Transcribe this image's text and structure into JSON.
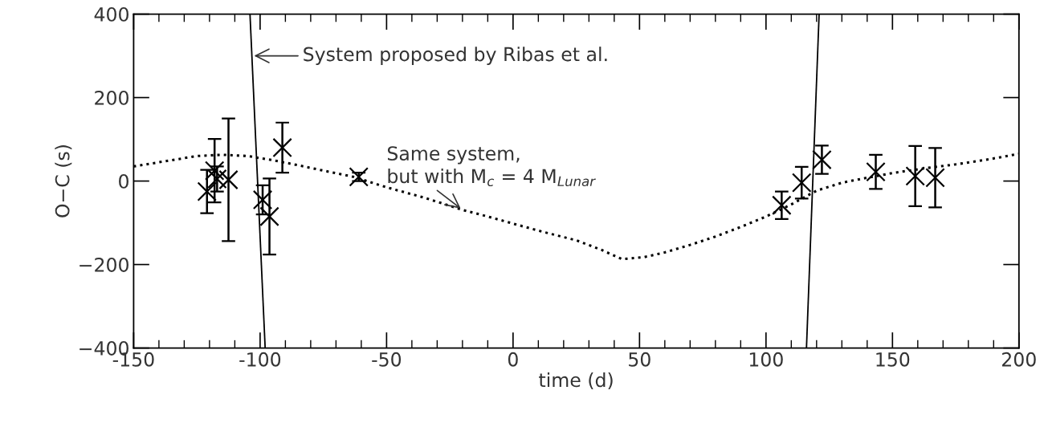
{
  "chart_data": {
    "type": "scatter",
    "xlabel": "time (d)",
    "ylabel": "O−C (s)",
    "xlim": [
      -150,
      200
    ],
    "xticks": [
      -150,
      -100,
      -50,
      0,
      50,
      100,
      150,
      200
    ],
    "ylim": [
      -400,
      400
    ],
    "yticks": [
      {
        "value": -400,
        "label": "−400"
      },
      {
        "value": -200,
        "label": "−200"
      },
      0,
      200,
      400
    ],
    "grid": false,
    "series": [
      {
        "color": "#000000",
        "marker": "cross",
        "x": [
          -121,
          -118,
          -117,
          -112.5,
          -99,
          -96.3,
          -91.2,
          -61,
          106.2,
          114.1,
          122.1,
          143.4,
          159,
          166.9
        ],
        "values": [
          -25,
          25,
          5,
          3,
          -45,
          -85,
          80,
          10,
          -58,
          -4,
          51,
          22,
          12,
          8
        ],
        "errors": [
          52,
          76,
          30,
          147,
          35,
          91,
          60,
          10,
          33,
          38,
          34,
          41,
          72,
          71
        ]
      },
      {
        "type": "line",
        "color": "#000000",
        "line_style": "dotted",
        "x": [
          -150,
          -135,
          -125,
          -115,
          -105,
          -95,
          -85,
          -75,
          -63,
          -50,
          -35,
          -20,
          -10,
          0,
          12,
          25,
          35,
          43,
          52,
          60,
          70,
          80,
          90,
          100,
          110,
          120,
          130,
          140,
          150,
          162,
          175,
          188,
          200
        ],
        "values": [
          35,
          50,
          60,
          63,
          60,
          50,
          38,
          25,
          10,
          -15,
          -40,
          -69,
          -85,
          -102,
          -122,
          -142,
          -165,
          -187,
          -182,
          -171,
          -153,
          -133,
          -110,
          -85,
          -56,
          -23,
          -4,
          8,
          19,
          30,
          40,
          52,
          65
        ]
      },
      {
        "type": "line",
        "color": "#000000",
        "line_style": "solid",
        "x": [
          -104,
          -98
        ],
        "values": [
          400,
          -400
        ]
      },
      {
        "type": "line",
        "color": "#000000",
        "line_style": "solid",
        "x": [
          116,
          121
        ],
        "values": [
          -400,
          400
        ]
      }
    ],
    "annotations": [
      {
        "text": "System proposed by Ribas et al.",
        "x": -103.25,
        "y": 300
      },
      {
        "text": "Same system,\nbut with M$_{c}$ = 4 M$_{Lunar}$",
        "x": -20,
        "y": -69
      }
    ]
  }
}
